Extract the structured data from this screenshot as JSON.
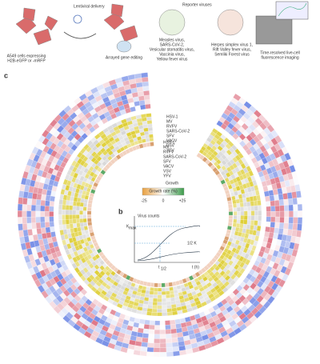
{
  "panel_a": {
    "lentiviral": "Lentiviral delivery",
    "cells": [
      "A549 cells expressing",
      "H2B-eGFP or -mRFP"
    ],
    "arrayed": "Arrayed gene editing",
    "reporter": "Reporter viruses",
    "viruses_1": [
      "Measles virus,",
      "SARS-CoV-2,",
      "Vesicular stomatitis virus,",
      "Vaccinia virus,",
      "Yellow fever virus"
    ],
    "viruses_2": [
      "Herpes simplex virus 1,",
      "Rift Valley fever virus,",
      "Semliki Forest virus"
    ],
    "imaging": [
      "Time-resolved live-cell",
      "fluorescence imaging"
    ]
  },
  "panel_c": {
    "letter": "c",
    "outer_viruses": [
      "HSV-1",
      "MV",
      "RVFV",
      "SARS-CoV-2",
      "SFV",
      "VACV",
      "VSV",
      "YFV"
    ],
    "inner_viruses": [
      "HSV-1",
      "MV",
      "RVFV",
      "SARS-CoV-2",
      "SFV",
      "VACV",
      "VSV",
      "YFV"
    ],
    "growth": "Growth",
    "legend_title": "Growth rate (%)",
    "legend_ticks": [
      "-25",
      "0",
      "+25"
    ]
  },
  "panel_b": {
    "letter": "b",
    "y_label": "Virus counts",
    "kmax": "K",
    "kmax_sub": "max",
    "half": "1/2 K",
    "t_half": "t",
    "t_half_sub": "1/2",
    "x_label": "t (h)"
  }
}
